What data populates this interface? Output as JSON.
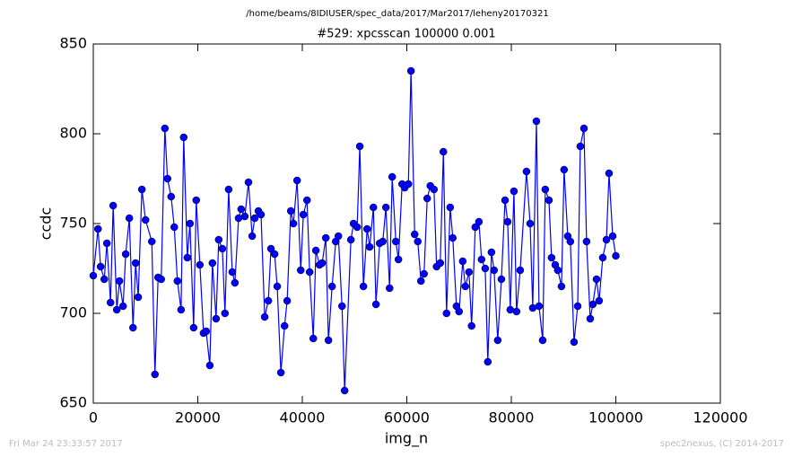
{
  "chart_data": {
    "type": "line",
    "suptitle": "/home/beams/8IDIUSER/spec_data/2017/Mar2017/leheny20170321",
    "title": "#529: xpcsscan 100000 0.001",
    "xlabel": "img_n",
    "ylabel": "ccdc",
    "x": [
      0,
      900,
      1400,
      2100,
      2600,
      3300,
      3800,
      4500,
      5000,
      5700,
      6200,
      6900,
      7600,
      8100,
      8600,
      9300,
      10000,
      11200,
      11800,
      12400,
      13000,
      13700,
      14200,
      14900,
      15500,
      16100,
      16800,
      17300,
      18000,
      18500,
      19200,
      19700,
      20400,
      21100,
      21600,
      22300,
      22800,
      23500,
      24000,
      24700,
      25200,
      25900,
      26600,
      27100,
      27800,
      28300,
      29000,
      29700,
      30400,
      30900,
      31600,
      32100,
      32800,
      33500,
      34000,
      34700,
      35200,
      35900,
      36600,
      37100,
      37800,
      38300,
      39000,
      39700,
      40200,
      40900,
      41400,
      42100,
      42600,
      43300,
      43800,
      44500,
      45000,
      45700,
      46400,
      46900,
      47600,
      48100,
      49300,
      49800,
      50500,
      51000,
      51700,
      52400,
      52900,
      53600,
      54100,
      54800,
      55400,
      56000,
      56700,
      57200,
      57900,
      58400,
      59100,
      59600,
      60300,
      60800,
      61500,
      62100,
      62700,
      63300,
      63900,
      64500,
      65200,
      65700,
      66400,
      67000,
      67600,
      68300,
      68800,
      69500,
      70000,
      70700,
      71200,
      71900,
      72400,
      73100,
      73800,
      74300,
      75000,
      75500,
      76200,
      76700,
      77400,
      78100,
      78800,
      79300,
      79800,
      80500,
      81000,
      81700,
      82900,
      83600,
      84100,
      84800,
      85300,
      86000,
      86500,
      87200,
      87700,
      88400,
      88900,
      89600,
      90100,
      90800,
      91300,
      92000,
      92700,
      93200,
      93900,
      94400,
      95100,
      95600,
      96300,
      96800,
      97500,
      98200,
      98700,
      99400,
      100000
    ],
    "series": [
      {
        "color": "#0000ff",
        "values": [
          721,
          747,
          726,
          719,
          739,
          706,
          760,
          702,
          718,
          704,
          733,
          753,
          692,
          728,
          709,
          769,
          752,
          740,
          666,
          720,
          719,
          803,
          775,
          765,
          748,
          718,
          702,
          798,
          731,
          750,
          692,
          763,
          727,
          689,
          690,
          671,
          728,
          697,
          741,
          736,
          700,
          769,
          723,
          717,
          753,
          758,
          754,
          773,
          743,
          753,
          757,
          755,
          698,
          707,
          736,
          733,
          715,
          667,
          693,
          707,
          757,
          750,
          774,
          724,
          755,
          763,
          723,
          686,
          735,
          727,
          728,
          742,
          685,
          715,
          740,
          743,
          704,
          657,
          741,
          750,
          748,
          793,
          715,
          747,
          737,
          759,
          705,
          739,
          740,
          759,
          714,
          776,
          740,
          730,
          772,
          770,
          772,
          835,
          744,
          740,
          718,
          722,
          764,
          771,
          769,
          726,
          728,
          790,
          700,
          759,
          742,
          704,
          701,
          729,
          715,
          723,
          693,
          748,
          751,
          730,
          725,
          673,
          734,
          724,
          685,
          719,
          763,
          751,
          702,
          768,
          701,
          724,
          779,
          750,
          703,
          807,
          704,
          685,
          769,
          763,
          731,
          727,
          724,
          715,
          780,
          743,
          740,
          684,
          704,
          793,
          803,
          740,
          697,
          705,
          719,
          707,
          731,
          741,
          778,
          743,
          732
        ]
      }
    ],
    "xlim": [
      0,
      120000
    ],
    "xticks": [
      0,
      20000,
      40000,
      60000,
      80000,
      100000,
      120000
    ],
    "ylim": [
      650,
      850
    ],
    "yticks": [
      650,
      700,
      750,
      800,
      850
    ],
    "grid": false
  },
  "footer": {
    "timestamp": "Fri Mar 24 23:33:57 2017",
    "credit": "spec2nexus, (C) 2014-2017"
  }
}
